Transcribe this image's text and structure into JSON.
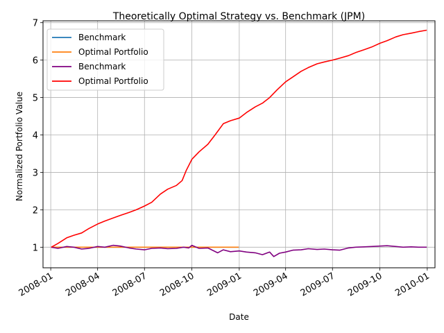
{
  "chart_data": {
    "type": "line",
    "title": "Theoretically Optimal Strategy vs. Benchmark (JPM)",
    "xlabel": "Date",
    "ylabel": "Normalized Portfolio Value",
    "xlim": [
      "2007-12-17",
      "2010-01-16"
    ],
    "ylim": [
      0.45,
      7.05
    ],
    "grid": true,
    "legend_position": "top-left",
    "x_ticks": [
      "2008-01",
      "2008-04",
      "2008-07",
      "2008-10",
      "2009-01",
      "2009-04",
      "2009-07",
      "2009-10",
      "2010-01"
    ],
    "y_ticks": [
      1,
      2,
      3,
      4,
      5,
      6,
      7
    ],
    "series": [
      {
        "name": "Benchmark",
        "color": "#1f77b4",
        "x": [
          "2008-01-02",
          "2008-12-31"
        ],
        "y": [
          1.0,
          1.0
        ]
      },
      {
        "name": "Optimal Portfolio",
        "color": "#ff7f0e",
        "x": [
          "2008-01-02",
          "2008-12-31"
        ],
        "y": [
          1.0,
          1.0
        ]
      },
      {
        "name": "Benchmark",
        "color": "#800080",
        "x": [
          "2008-01-02",
          "2008-01-15",
          "2008-02-01",
          "2008-02-15",
          "2008-03-01",
          "2008-03-15",
          "2008-04-01",
          "2008-04-15",
          "2008-05-01",
          "2008-05-15",
          "2008-06-01",
          "2008-06-15",
          "2008-07-01",
          "2008-07-15",
          "2008-08-01",
          "2008-08-15",
          "2008-09-01",
          "2008-09-15",
          "2008-09-25",
          "2008-10-01",
          "2008-10-15",
          "2008-11-01",
          "2008-11-20",
          "2008-12-01",
          "2008-12-15",
          "2009-01-01",
          "2009-01-15",
          "2009-02-01",
          "2009-02-15",
          "2009-03-01",
          "2009-03-09",
          "2009-03-20",
          "2009-04-01",
          "2009-04-15",
          "2009-05-01",
          "2009-05-15",
          "2009-06-01",
          "2009-06-15",
          "2009-07-01",
          "2009-07-15",
          "2009-08-01",
          "2009-08-15",
          "2009-09-01",
          "2009-09-15",
          "2009-10-01",
          "2009-10-15",
          "2009-11-01",
          "2009-11-15",
          "2009-12-01",
          "2009-12-15",
          "2009-12-31"
        ],
        "y": [
          1.0,
          0.97,
          1.02,
          1.0,
          0.95,
          0.97,
          1.02,
          1.0,
          1.05,
          1.03,
          0.98,
          0.95,
          0.93,
          0.97,
          0.98,
          0.96,
          0.97,
          1.0,
          0.98,
          1.05,
          0.97,
          0.98,
          0.85,
          0.93,
          0.88,
          0.9,
          0.87,
          0.85,
          0.8,
          0.87,
          0.75,
          0.84,
          0.87,
          0.92,
          0.93,
          0.96,
          0.94,
          0.95,
          0.93,
          0.92,
          0.98,
          1.0,
          1.01,
          1.02,
          1.03,
          1.04,
          1.02,
          1.0,
          1.01,
          1.0,
          1.0
        ]
      },
      {
        "name": "Optimal Portfolio",
        "color": "#ff0000",
        "x": [
          "2008-01-02",
          "2008-01-15",
          "2008-02-01",
          "2008-02-15",
          "2008-03-01",
          "2008-03-15",
          "2008-04-01",
          "2008-04-15",
          "2008-05-01",
          "2008-05-15",
          "2008-06-01",
          "2008-06-15",
          "2008-07-01",
          "2008-07-15",
          "2008-08-01",
          "2008-08-15",
          "2008-09-01",
          "2008-09-12",
          "2008-09-20",
          "2008-10-01",
          "2008-10-15",
          "2008-11-01",
          "2008-11-15",
          "2008-12-01",
          "2008-12-15",
          "2009-01-01",
          "2009-01-15",
          "2009-02-01",
          "2009-02-15",
          "2009-03-01",
          "2009-03-15",
          "2009-04-01",
          "2009-04-15",
          "2009-05-01",
          "2009-05-15",
          "2009-06-01",
          "2009-06-15",
          "2009-07-01",
          "2009-07-15",
          "2009-08-01",
          "2009-08-15",
          "2009-09-01",
          "2009-09-15",
          "2009-10-01",
          "2009-10-15",
          "2009-11-01",
          "2009-11-15",
          "2009-12-01",
          "2009-12-15",
          "2009-12-31"
        ],
        "y": [
          1.0,
          1.1,
          1.25,
          1.32,
          1.38,
          1.5,
          1.62,
          1.7,
          1.78,
          1.85,
          1.93,
          2.0,
          2.1,
          2.2,
          2.42,
          2.55,
          2.65,
          2.78,
          3.05,
          3.35,
          3.55,
          3.75,
          4.0,
          4.3,
          4.38,
          4.45,
          4.6,
          4.75,
          4.85,
          5.0,
          5.2,
          5.42,
          5.55,
          5.7,
          5.8,
          5.9,
          5.95,
          6.0,
          6.05,
          6.12,
          6.2,
          6.28,
          6.35,
          6.45,
          6.52,
          6.62,
          6.68,
          6.72,
          6.76,
          6.8
        ]
      }
    ]
  }
}
